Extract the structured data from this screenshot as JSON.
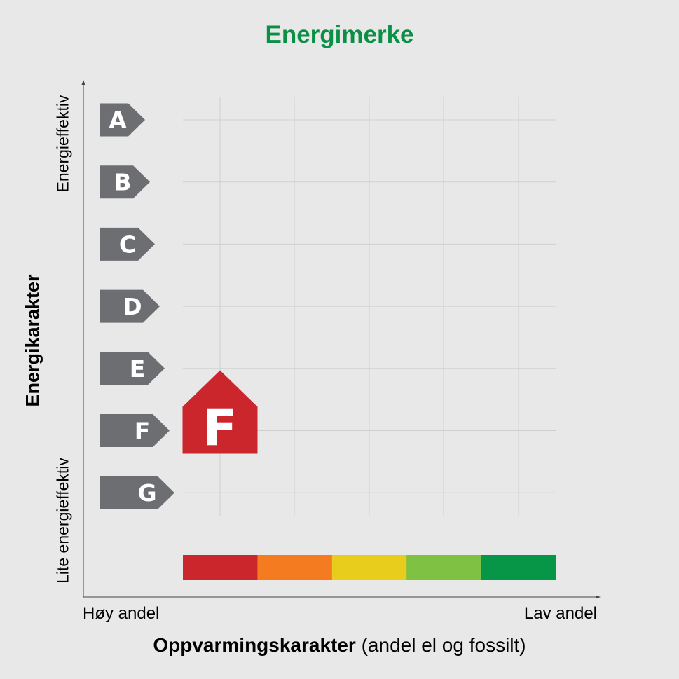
{
  "title": "Energimerke",
  "title_color": "#0a8f45",
  "y_axis": {
    "label": "Energikarakter",
    "top_label": "Energieffektiv",
    "bottom_label": "Lite energieffektiv"
  },
  "x_axis": {
    "label_bold": "Oppvarmingskarakter",
    "label_rest": " (andel el og fossilt)",
    "left_label": "Høy andel",
    "right_label": "Lav andel"
  },
  "grades": [
    "A",
    "B",
    "C",
    "D",
    "E",
    "F",
    "G"
  ],
  "grade_arrow_color": "#6d6e71",
  "heating_scale_colors": [
    "#cc262d",
    "#f47b20",
    "#e8cd1c",
    "#7fc143",
    "#079648"
  ],
  "marker": {
    "label": "F",
    "color": "#cc262d",
    "energy_grade": "F",
    "heating_grade_index": 1
  }
}
